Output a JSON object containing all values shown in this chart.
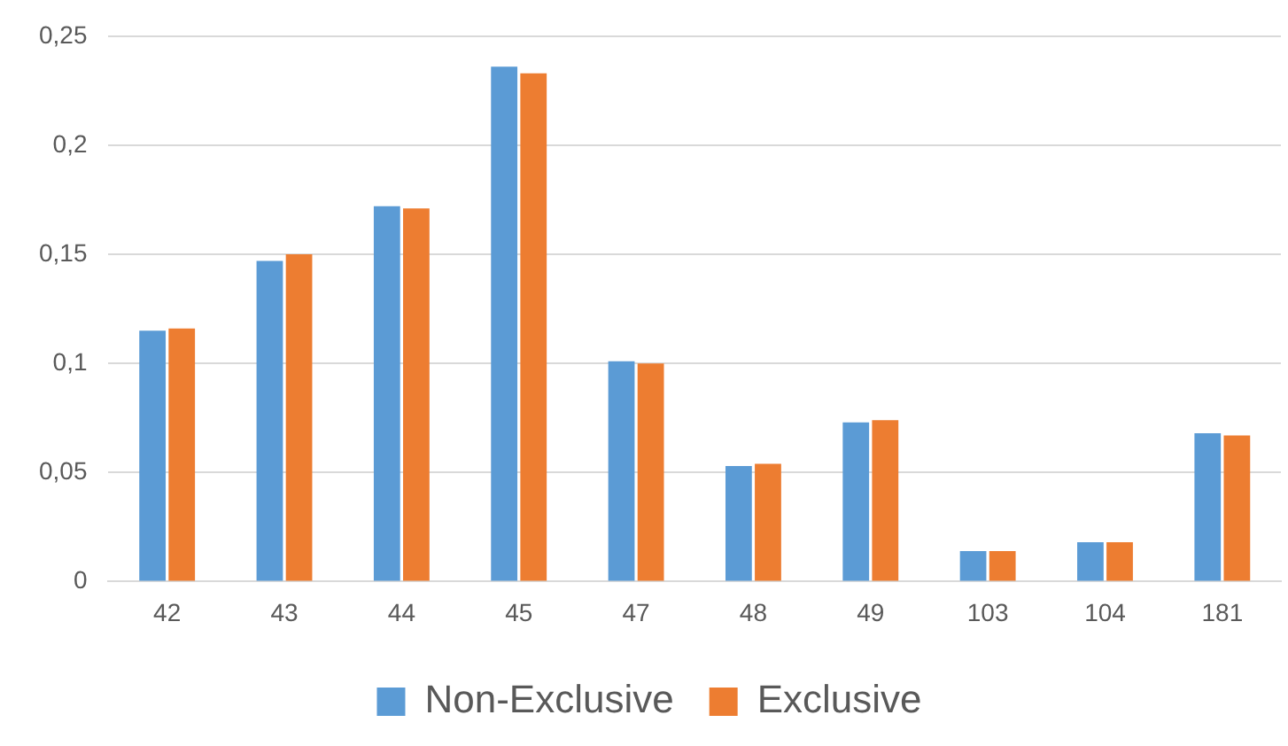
{
  "chart_data": {
    "type": "bar",
    "categories": [
      "42",
      "43",
      "44",
      "45",
      "47",
      "48",
      "49",
      "103",
      "104",
      "181"
    ],
    "series": [
      {
        "name": "Non-Exclusive",
        "color": "#5b9bd5",
        "values": [
          0.115,
          0.147,
          0.172,
          0.236,
          0.101,
          0.053,
          0.073,
          0.014,
          0.018,
          0.068
        ]
      },
      {
        "name": "Exclusive",
        "color": "#ed7d31",
        "values": [
          0.116,
          0.15,
          0.171,
          0.233,
          0.1,
          0.054,
          0.074,
          0.014,
          0.018,
          0.067
        ]
      }
    ],
    "ylim": [
      0,
      0.25
    ],
    "yticks": [
      {
        "value": 0,
        "label": "0"
      },
      {
        "value": 0.05,
        "label": "0,05"
      },
      {
        "value": 0.1,
        "label": "0,1"
      },
      {
        "value": 0.15,
        "label": "0,15"
      },
      {
        "value": 0.2,
        "label": "0,2"
      },
      {
        "value": 0.25,
        "label": "0,25"
      }
    ],
    "grid": "y",
    "legend": "bottom"
  }
}
